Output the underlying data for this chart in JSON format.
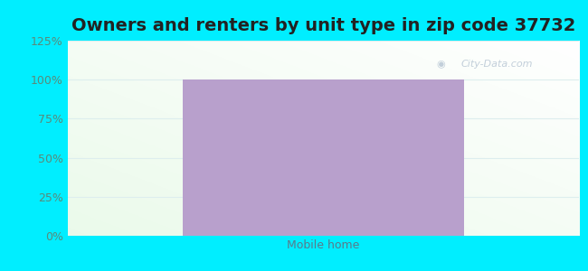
{
  "title": "Owners and renters by unit type in zip code 37732",
  "categories": [
    "Mobile home"
  ],
  "values": [
    100
  ],
  "bar_color": "#b8a0cc",
  "ylim": [
    0,
    125
  ],
  "yticks": [
    0,
    25,
    50,
    75,
    100,
    125
  ],
  "ytick_labels": [
    "0%",
    "25%",
    "50%",
    "75%",
    "100%",
    "125%"
  ],
  "ytick_color": "#5a8a7a",
  "xlabel_color": "#5a7a8a",
  "title_fontsize": 14,
  "tick_label_fontsize": 9,
  "xlabel_fontsize": 9,
  "bg_outer_color": "#00eeff",
  "watermark_text": "City-Data.com",
  "watermark_color": "#aabbcc",
  "watermark_alpha": 0.7,
  "grid_color": "#ddeeee",
  "bar_width": 0.55
}
